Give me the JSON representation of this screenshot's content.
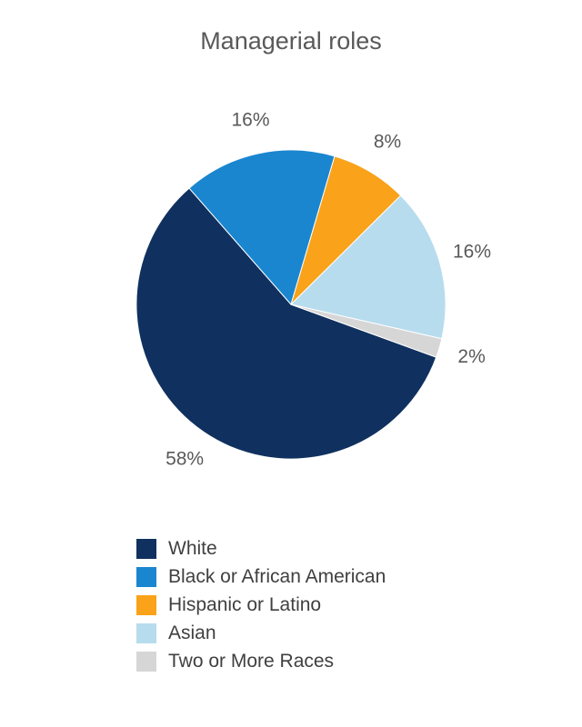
{
  "chart_data": {
    "type": "pie",
    "title": "Managerial roles",
    "slices": [
      {
        "label": "White",
        "value": 58,
        "display": "58%",
        "color": "#10315f"
      },
      {
        "label": "Black or African American",
        "value": 16,
        "display": "16%",
        "color": "#1a86d0"
      },
      {
        "label": "Hispanic or Latino",
        "value": 8,
        "display": "8%",
        "color": "#f9a21a"
      },
      {
        "label": "Asian",
        "value": 16,
        "display": "16%",
        "color": "#b7dcee"
      },
      {
        "label": "Two or More Races",
        "value": 2,
        "display": "2%",
        "color": "#d6d6d6"
      }
    ],
    "start_angle": 110,
    "label_color": "#595959",
    "legend_position": "bottom-left",
    "grid": false,
    "xlabel": "",
    "ylabel": ""
  }
}
